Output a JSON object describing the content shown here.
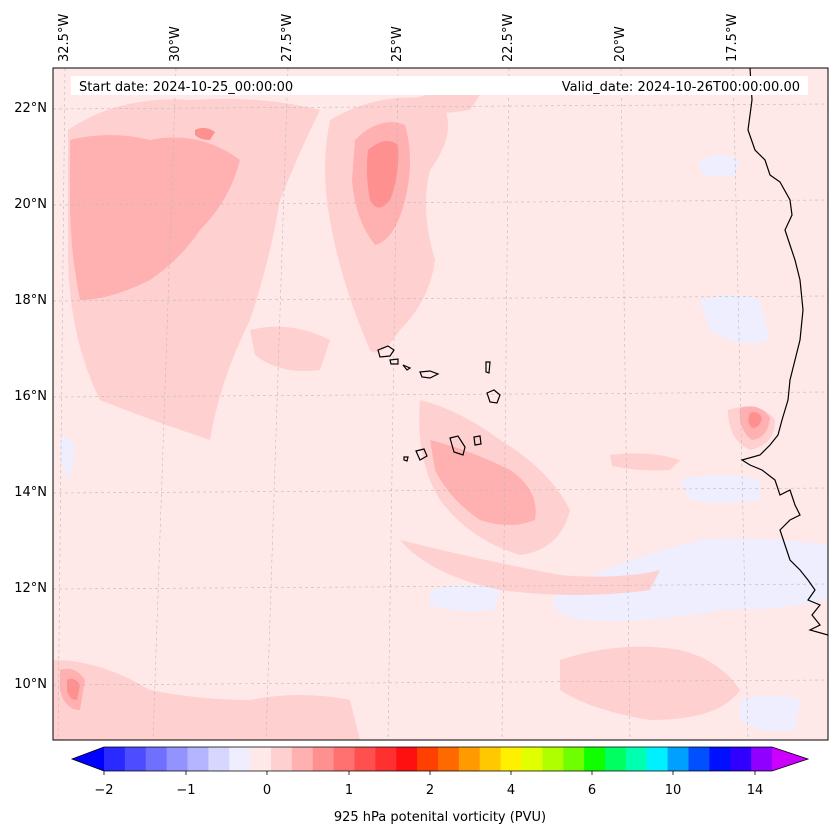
{
  "map": {
    "start_date_label": "Start date: 2024-10-25_00:00:00",
    "valid_date_label": "Valid_date: 2024-10-26T00:00:00.00",
    "lon_labels": [
      "32.5°W",
      "30°W",
      "27.5°W",
      "25°W",
      "22.5°W",
      "20°W",
      "17.5°W"
    ],
    "lat_labels": [
      "22°N",
      "20°N",
      "18°N",
      "16°N",
      "14°N",
      "12°N",
      "10°N"
    ],
    "background_color": "#ffe8e8"
  },
  "colorbar": {
    "title": "925 hPa potenital vorticity (PVU)",
    "tick_labels": [
      "−2",
      "−1",
      "0",
      "1",
      "2",
      "4",
      "6",
      "10",
      "14"
    ],
    "colors": [
      "#0000ff",
      "#2a2aff",
      "#4d4dff",
      "#7070ff",
      "#9393ff",
      "#b4b4ff",
      "#d6d6ff",
      "#eeeeff",
      "#ffe8e8",
      "#ffd0d0",
      "#ffb0b0",
      "#ff9090",
      "#ff7070",
      "#ff5050",
      "#ff3030",
      "#ff1010",
      "#ff4000",
      "#ff6a00",
      "#ff9a00",
      "#ffc800",
      "#fff000",
      "#e0ff00",
      "#b0ff00",
      "#70ff00",
      "#10ff00",
      "#00ff60",
      "#00ffb0",
      "#00f0ff",
      "#00a0ff",
      "#0050ff",
      "#0010ff",
      "#3000ff",
      "#9000ff",
      "#cc00ff"
    ]
  }
}
